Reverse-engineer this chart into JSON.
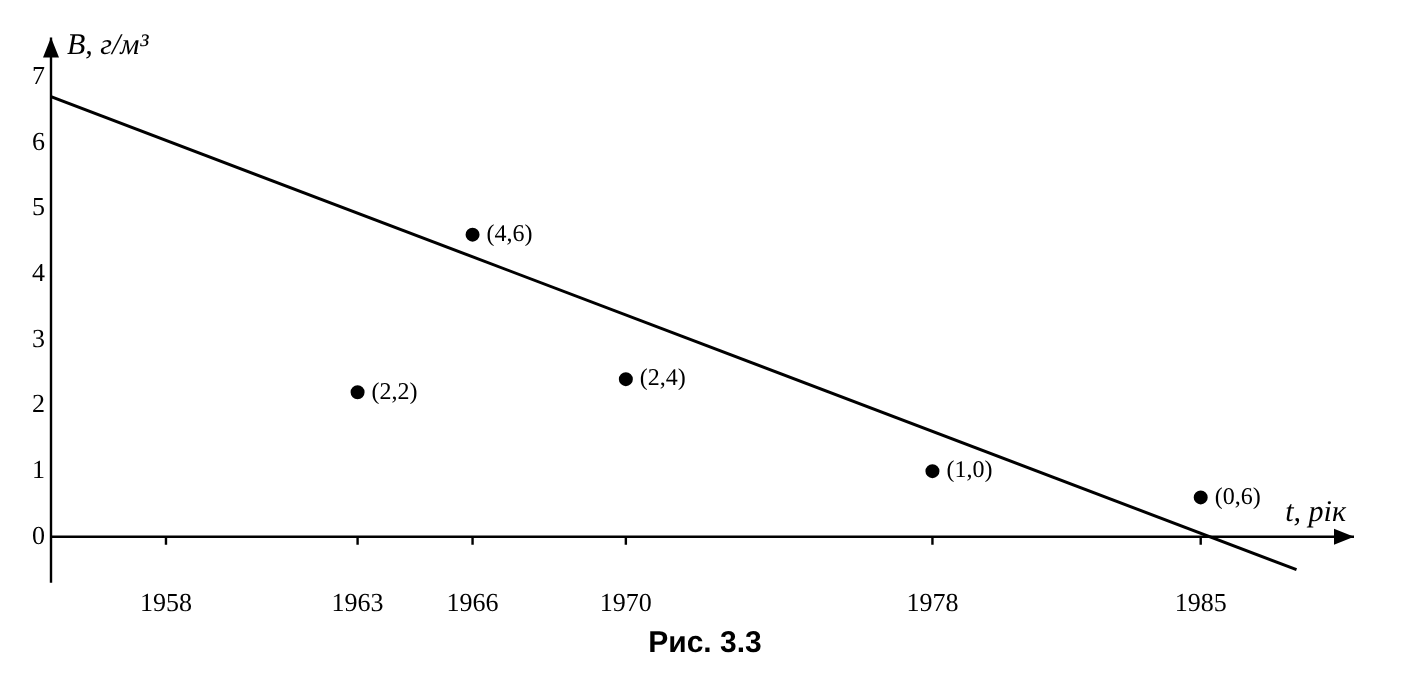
{
  "chart_data": {
    "type": "scatter",
    "xlabel": "t, рік",
    "ylabel": "B, г/м³",
    "annotations": [
      "Рис. 3.3"
    ],
    "xlim": [
      1955,
      1989
    ],
    "ylim": [
      -0.7,
      7.6
    ],
    "xticks": [
      1958,
      1963,
      1966,
      1970,
      1978,
      1985
    ],
    "yticks": [
      0,
      1,
      2,
      3,
      4,
      5,
      6,
      7
    ],
    "grid": false,
    "legend": false,
    "series": [
      {
        "color": "#000000",
        "marker": "circle",
        "x": [
          1963,
          1966,
          1970,
          1978,
          1985
        ],
        "values": [
          2.2,
          4.6,
          2.4,
          1.0,
          0.6
        ],
        "value_labels": [
          "(2,2)",
          "(4,6)",
          "(2,4)",
          "(1,0)",
          "(0,6)"
        ]
      },
      {
        "type": "line",
        "color": "#000000",
        "marker": "none",
        "line_style": "solid",
        "x": [
          1955,
          1987.5
        ],
        "values": [
          6.7,
          -0.5
        ]
      }
    ]
  }
}
